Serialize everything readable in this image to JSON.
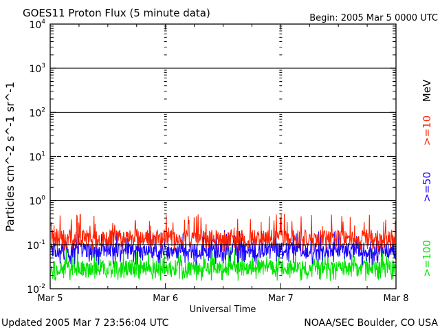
{
  "header": {
    "title": "GOES11 Proton Flux (5 minute data)",
    "begin": "Begin: 2005 Mar 5 0000 UTC"
  },
  "footer": {
    "updated": "Updated 2005 Mar  7 23:56:04 UTC",
    "credit": "NOAA/SEC Boulder, CO USA"
  },
  "colors": {
    "ge10": "#ff2200",
    "ge50": "#1a00ff",
    "ge100": "#00e400",
    "axis": "#000000"
  },
  "chart_data": {
    "type": "line",
    "title": "GOES11 Proton Flux (5 minute data)",
    "xlabel": "Universal Time",
    "ylabel": "Particles cm^-2 s^-1 sr^-1",
    "yscale": "log",
    "ylim": [
      0.01,
      10000
    ],
    "xlim": [
      "Mar 5",
      "Mar 8"
    ],
    "x_ticks": [
      "Mar 5",
      "Mar 6",
      "Mar 7",
      "Mar 8"
    ],
    "y_ticks": [
      {
        "base": "10",
        "exp": "-2"
      },
      {
        "base": "10",
        "exp": "-1"
      },
      {
        "base": "10",
        "exp": "0"
      },
      {
        "base": "10",
        "exp": "1"
      },
      {
        "base": "10",
        "exp": "2"
      },
      {
        "base": "10",
        "exp": "3"
      },
      {
        "base": "10",
        "exp": "4"
      }
    ],
    "reference_lines": [
      {
        "value": 1000,
        "style": "solid"
      },
      {
        "value": 100,
        "style": "solid"
      },
      {
        "value": 10,
        "style": "dashed"
      },
      {
        "value": 1,
        "style": "solid"
      },
      {
        "value": 0.1,
        "style": "solid"
      }
    ],
    "right_labels": [
      {
        "text": "MeV",
        "color": "#000000"
      },
      {
        "text": ">=10",
        "color": "#ff2200"
      },
      {
        "text": ">=50",
        "color": "#1a00ff"
      },
      {
        "text": ">=100",
        "color": "#00e400"
      }
    ],
    "series": [
      {
        "name": ">=10",
        "color": "#ff2200",
        "typical": 0.14,
        "range": [
          0.07,
          0.5
        ]
      },
      {
        "name": ">=50",
        "color": "#1a00ff",
        "typical": 0.075,
        "range": [
          0.035,
          0.22
        ]
      },
      {
        "name": ">=100",
        "color": "#00e400",
        "typical": 0.03,
        "range": [
          0.015,
          0.09
        ]
      }
    ]
  }
}
